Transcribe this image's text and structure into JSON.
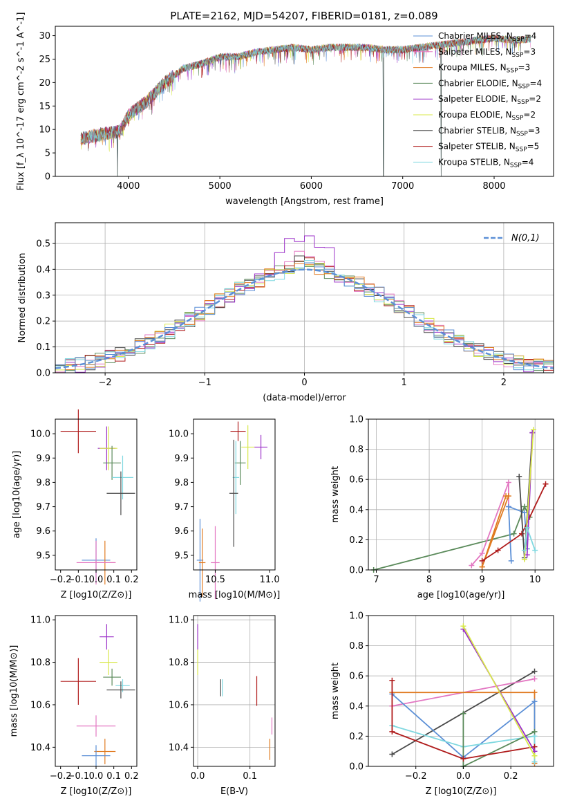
{
  "chart_data": [
    {
      "type": "line",
      "title": "PLATE=2162, MJD=54207, FIBERID=0181, z=0.089",
      "xlabel": "wavelength [Angstrom, rest frame]",
      "ylabel": "Flux [f_λ 10^-17 erg cm^-2 s^-1 A^-1]",
      "xlim": [
        3200,
        8650
      ],
      "ylim": [
        0,
        32
      ],
      "xticks": [
        4000,
        5000,
        6000,
        7000,
        8000
      ],
      "yticks": [
        0,
        5,
        10,
        15,
        20,
        25,
        30
      ],
      "continuum": [
        [
          3480,
          8
        ],
        [
          3700,
          9
        ],
        [
          3900,
          9.5
        ],
        [
          4000,
          13
        ],
        [
          4200,
          16
        ],
        [
          4400,
          20
        ],
        [
          4600,
          23
        ],
        [
          4800,
          24
        ],
        [
          5000,
          25.5
        ],
        [
          5200,
          25.5
        ],
        [
          5400,
          26.5
        ],
        [
          5600,
          27
        ],
        [
          5800,
          27.5
        ],
        [
          6000,
          27
        ],
        [
          6200,
          27.5
        ],
        [
          6400,
          27.5
        ],
        [
          6600,
          27.5
        ],
        [
          6800,
          27
        ],
        [
          7000,
          27
        ],
        [
          7200,
          27.5
        ],
        [
          7400,
          28
        ],
        [
          7600,
          28.5
        ],
        [
          7800,
          29
        ],
        [
          8000,
          29.5
        ],
        [
          8200,
          29
        ],
        [
          8400,
          29.3
        ]
      ],
      "gaps": [
        [
          3880,
          0
        ],
        [
          6790,
          0
        ],
        [
          7420,
          0
        ]
      ],
      "legend": "top-right",
      "series": [
        {
          "name": "Chabrier MILES",
          "nssp": "4",
          "color": "#5b8fd6"
        },
        {
          "name": "Salpeter MILES",
          "nssp": "3",
          "color": "#e377c2"
        },
        {
          "name": "Kroupa MILES",
          "nssp": "3",
          "color": "#e07a20"
        },
        {
          "name": "Chabrier ELODIE",
          "nssp": "4",
          "color": "#5a8a5a"
        },
        {
          "name": "Salpeter ELODIE",
          "nssp": "2",
          "color": "#9b30c8"
        },
        {
          "name": "Kroupa ELODIE",
          "nssp": "2",
          "color": "#d8e84a"
        },
        {
          "name": "Chabrier STELIB",
          "nssp": "3",
          "color": "#4a4a4a"
        },
        {
          "name": "Salpeter STELIB",
          "nssp": "5",
          "color": "#b01c1c"
        },
        {
          "name": "Kroupa STELIB",
          "nssp": "4",
          "color": "#7fd8e0"
        }
      ]
    },
    {
      "type": "histogram",
      "xlabel": "(data-model)/error",
      "ylabel": "Normed distribution",
      "xlim": [
        -2.5,
        2.5
      ],
      "ylim": [
        0,
        0.58
      ],
      "xticks": [
        -2,
        -1,
        0,
        1,
        2
      ],
      "yticks": [
        0.0,
        0.1,
        0.2,
        0.3,
        0.4,
        0.5
      ],
      "grid": true,
      "legend": "top-right",
      "gaussian_label": "N(0,1)",
      "bin_width": 0.1,
      "hist_series": [
        {
          "color": "#e377c2",
          "peak": 0.49
        },
        {
          "color": "#5a8a5a",
          "peak": 0.47
        },
        {
          "color": "#b01c1c",
          "peak": 0.46
        },
        {
          "color": "#4a4a4a",
          "peak": 0.47
        },
        {
          "color": "#9b30c8",
          "peak": 0.57
        },
        {
          "color": "#d8e84a",
          "peak": 0.44
        },
        {
          "color": "#7fd8e0",
          "peak": 0.45
        },
        {
          "color": "#e07a20",
          "peak": 0.43
        },
        {
          "color": "#5b8fd6",
          "peak": 0.43
        }
      ]
    },
    {
      "type": "scatter",
      "xlabel": "Z [log10(Z/Z⊙)]",
      "ylabel": "age [log10(age/yr)]",
      "xlim": [
        -0.23,
        0.23
      ],
      "ylim": [
        9.44,
        10.06
      ],
      "xticks": [
        -0.2,
        -0.1,
        0.0,
        0.1,
        0.2
      ],
      "yticks": [
        9.5,
        9.6,
        9.7,
        9.8,
        9.9,
        10.0
      ],
      "points": [
        {
          "x": -0.1,
          "y": 10.01,
          "xerr": 0.1,
          "yerr": 0.09,
          "color": "#b01c1c"
        },
        {
          "x": 0.06,
          "y": 9.94,
          "xerr": 0.05,
          "yerr": 0.09,
          "color": "#9b30c8"
        },
        {
          "x": 0.07,
          "y": 9.94,
          "xerr": 0.05,
          "yerr": 0.09,
          "color": "#d8e84a"
        },
        {
          "x": 0.09,
          "y": 9.88,
          "xerr": 0.05,
          "yerr": 0.07,
          "color": "#5a8a5a"
        },
        {
          "x": 0.15,
          "y": 9.82,
          "xerr": 0.06,
          "yerr": 0.09,
          "color": "#7fd8e0"
        },
        {
          "x": 0.14,
          "y": 9.755,
          "xerr": 0.08,
          "yerr": 0.09,
          "color": "#4a4a4a"
        },
        {
          "x": 0.0,
          "y": 9.48,
          "xerr": 0.08,
          "yerr": 0.09,
          "color": "#5b8fd6"
        },
        {
          "x": 0.05,
          "y": 9.47,
          "xerr": 0.06,
          "yerr": 0.09,
          "color": "#e07a20"
        },
        {
          "x": 0.0,
          "y": 9.47,
          "xerr": 0.11,
          "yerr": 0.09,
          "color": "#e377c2"
        }
      ]
    },
    {
      "type": "scatter",
      "xlabel": "mass [log10(M/M⊙)]",
      "xlim": [
        10.3,
        11.05
      ],
      "ylim": [
        9.44,
        10.06
      ],
      "xticks": [
        10.5,
        11.0
      ],
      "yticks": [
        9.5,
        9.6,
        9.7,
        9.8,
        9.9,
        10.0
      ],
      "points": [
        {
          "x": 10.71,
          "y": 10.01,
          "xerr": 0.07,
          "yerr": 0.04,
          "color": "#b01c1c"
        },
        {
          "x": 10.92,
          "y": 9.945,
          "xerr": 0.06,
          "yerr": 0.05,
          "color": "#9b30c8"
        },
        {
          "x": 10.8,
          "y": 9.945,
          "xerr": 0.06,
          "yerr": 0.09,
          "color": "#d8e84a"
        },
        {
          "x": 10.73,
          "y": 9.88,
          "xerr": 0.05,
          "yerr": 0.09,
          "color": "#5a8a5a"
        },
        {
          "x": 10.69,
          "y": 9.82,
          "xerr": 0.03,
          "yerr": 0.15,
          "color": "#7fd8e0"
        },
        {
          "x": 10.67,
          "y": 9.755,
          "xerr": 0.04,
          "yerr": 0.22,
          "color": "#4a4a4a"
        },
        {
          "x": 10.36,
          "y": 9.48,
          "xerr": 0.03,
          "yerr": 0.17,
          "color": "#5b8fd6"
        },
        {
          "x": 10.38,
          "y": 9.47,
          "xerr": 0.03,
          "yerr": 0.14,
          "color": "#e07a20"
        },
        {
          "x": 10.5,
          "y": 9.47,
          "xerr": 0.04,
          "yerr": 0.15,
          "color": "#e377c2"
        }
      ]
    },
    {
      "type": "line",
      "xlabel": "age [log10(age/yr)]",
      "ylabel": "mass weight",
      "xlim": [
        6.85,
        10.35
      ],
      "ylim": [
        0,
        1.0
      ],
      "xticks": [
        7,
        8,
        9,
        10
      ],
      "yticks": [
        0.0,
        0.2,
        0.4,
        0.6,
        0.8,
        1.0
      ],
      "grid": true,
      "series_lines": [
        {
          "color": "#5a8a5a",
          "points": [
            [
              6.95,
              0.0
            ],
            [
              9.6,
              0.24
            ],
            [
              9.8,
              0.42
            ],
            [
              9.9,
              0.35
            ]
          ]
        },
        {
          "color": "#e377c2",
          "points": [
            [
              8.8,
              0.03
            ],
            [
              9.0,
              0.11
            ],
            [
              9.5,
              0.58
            ],
            [
              9.5,
              0.42
            ]
          ]
        },
        {
          "color": "#e07a20",
          "points": [
            [
              9.0,
              0.02
            ],
            [
              9.45,
              0.49
            ],
            [
              9.5,
              0.49
            ],
            [
              9.0,
              0.02
            ]
          ]
        },
        {
          "color": "#5b8fd6",
          "points": [
            [
              9.55,
              0.06
            ],
            [
              9.5,
              0.42
            ],
            [
              9.8,
              0.38
            ],
            [
              9.85,
              0.14
            ]
          ]
        },
        {
          "color": "#b01c1c",
          "points": [
            [
              9.0,
              0.06
            ],
            [
              9.3,
              0.13
            ],
            [
              9.75,
              0.24
            ],
            [
              10.2,
              0.57
            ]
          ]
        },
        {
          "color": "#4a4a4a",
          "points": [
            [
              9.7,
              0.62
            ],
            [
              9.8,
              0.08
            ],
            [
              9.95,
              0.91
            ]
          ]
        },
        {
          "color": "#9b30c8",
          "points": [
            [
              9.85,
              0.1
            ],
            [
              9.95,
              0.91
            ]
          ]
        },
        {
          "color": "#d8e84a",
          "points": [
            [
              9.8,
              0.07
            ],
            [
              9.97,
              0.93
            ]
          ]
        },
        {
          "color": "#7fd8e0",
          "points": [
            [
              9.8,
              0.13
            ],
            [
              9.85,
              0.28
            ],
            [
              10.0,
              0.13
            ]
          ]
        }
      ]
    },
    {
      "type": "scatter",
      "xlabel": "Z [log10(Z/Z⊙)]",
      "ylabel": "mass [log10(M/M⊙)]",
      "xlim": [
        -0.23,
        0.23
      ],
      "ylim": [
        10.31,
        11.02
      ],
      "xticks": [
        -0.2,
        -0.1,
        0.0,
        0.1,
        0.2
      ],
      "yticks": [
        10.4,
        10.6,
        10.8,
        11.0
      ],
      "points": [
        {
          "x": 0.06,
          "y": 10.92,
          "xerr": 0.04,
          "yerr": 0.06,
          "color": "#9b30c8"
        },
        {
          "x": 0.07,
          "y": 10.8,
          "xerr": 0.05,
          "yerr": 0.06,
          "color": "#d8e84a"
        },
        {
          "x": 0.09,
          "y": 10.73,
          "xerr": 0.05,
          "yerr": 0.04,
          "color": "#5a8a5a"
        },
        {
          "x": -0.1,
          "y": 10.71,
          "xerr": 0.1,
          "yerr": 0.11,
          "color": "#b01c1c"
        },
        {
          "x": 0.15,
          "y": 10.69,
          "xerr": 0.04,
          "yerr": 0.03,
          "color": "#7fd8e0"
        },
        {
          "x": 0.14,
          "y": 10.67,
          "xerr": 0.08,
          "yerr": 0.04,
          "color": "#4a4a4a"
        },
        {
          "x": 0.0,
          "y": 10.5,
          "xerr": 0.11,
          "yerr": 0.05,
          "color": "#e377c2"
        },
        {
          "x": 0.05,
          "y": 10.38,
          "xerr": 0.06,
          "yerr": 0.06,
          "color": "#e07a20"
        },
        {
          "x": 0.0,
          "y": 10.36,
          "xerr": 0.08,
          "yerr": 0.05,
          "color": "#5b8fd6"
        }
      ]
    },
    {
      "type": "scatter",
      "xlabel": "E(B-V)",
      "xlim": [
        -0.008,
        0.148
      ],
      "ylim": [
        10.31,
        11.02
      ],
      "xticks": [
        0.0,
        0.1
      ],
      "yticks": [
        10.4,
        10.6,
        10.8,
        11.0
      ],
      "grid": true,
      "points": [
        {
          "x": 0.0,
          "y": 10.92,
          "yerr": 0.06,
          "color": "#9b30c8"
        },
        {
          "x": 0.0,
          "y": 10.8,
          "yerr": 0.06,
          "color": "#d8e84a"
        },
        {
          "x": 0.044,
          "y": 10.68,
          "yerr": 0.04,
          "color": "#4a4a4a"
        },
        {
          "x": 0.047,
          "y": 10.68,
          "yerr": 0.04,
          "color": "#7fd8e0"
        },
        {
          "x": 0.113,
          "y": 10.665,
          "yerr": 0.07,
          "color": "#b01c1c"
        },
        {
          "x": 0.142,
          "y": 10.5,
          "yerr": 0.04,
          "color": "#e377c2"
        },
        {
          "x": 0.138,
          "y": 10.39,
          "yerr": 0.05,
          "color": "#e07a20"
        }
      ]
    },
    {
      "type": "line",
      "xlabel": "Z [log10(Z/Z⊙)]",
      "ylabel": "mass weight",
      "xlim": [
        -0.4,
        0.38
      ],
      "ylim": [
        0,
        1.0
      ],
      "xticks": [
        -0.2,
        0.0,
        0.2
      ],
      "yticks": [
        0.0,
        0.2,
        0.4,
        0.6,
        0.8,
        1.0
      ],
      "grid": true,
      "series_lines": [
        {
          "color": "#4a4a4a",
          "points": [
            [
              -0.3,
              0.08
            ],
            [
              0.3,
              0.63
            ]
          ]
        },
        {
          "color": "#e377c2",
          "points": [
            [
              -0.3,
              0.4
            ],
            [
              0.3,
              0.58
            ]
          ]
        },
        {
          "color": "#e07a20",
          "points": [
            [
              -0.3,
              0.49
            ],
            [
              0.3,
              0.49
            ],
            [
              0.3,
              0.02
            ]
          ]
        },
        {
          "color": "#5b8fd6",
          "points": [
            [
              -0.3,
              0.48
            ],
            [
              0.0,
              0.06
            ],
            [
              0.3,
              0.43
            ],
            [
              0.3,
              0.1
            ]
          ]
        },
        {
          "color": "#7fd8e0",
          "points": [
            [
              -0.3,
              0.27
            ],
            [
              0.0,
              0.13
            ],
            [
              0.3,
              0.2
            ],
            [
              0.3,
              0.03
            ]
          ]
        },
        {
          "color": "#5a8a5a",
          "points": [
            [
              0.0,
              0.35
            ],
            [
              0.0,
              0.0
            ],
            [
              0.3,
              0.23
            ]
          ]
        },
        {
          "color": "#b01c1c",
          "points": [
            [
              -0.3,
              0.57
            ],
            [
              -0.3,
              0.23
            ],
            [
              0.0,
              0.05
            ],
            [
              0.3,
              0.13
            ]
          ]
        },
        {
          "color": "#9b30c8",
          "points": [
            [
              0.0,
              0.91
            ],
            [
              0.3,
              0.1
            ]
          ]
        },
        {
          "color": "#d8e84a",
          "points": [
            [
              0.0,
              0.93
            ],
            [
              0.3,
              0.07
            ]
          ]
        }
      ]
    }
  ]
}
